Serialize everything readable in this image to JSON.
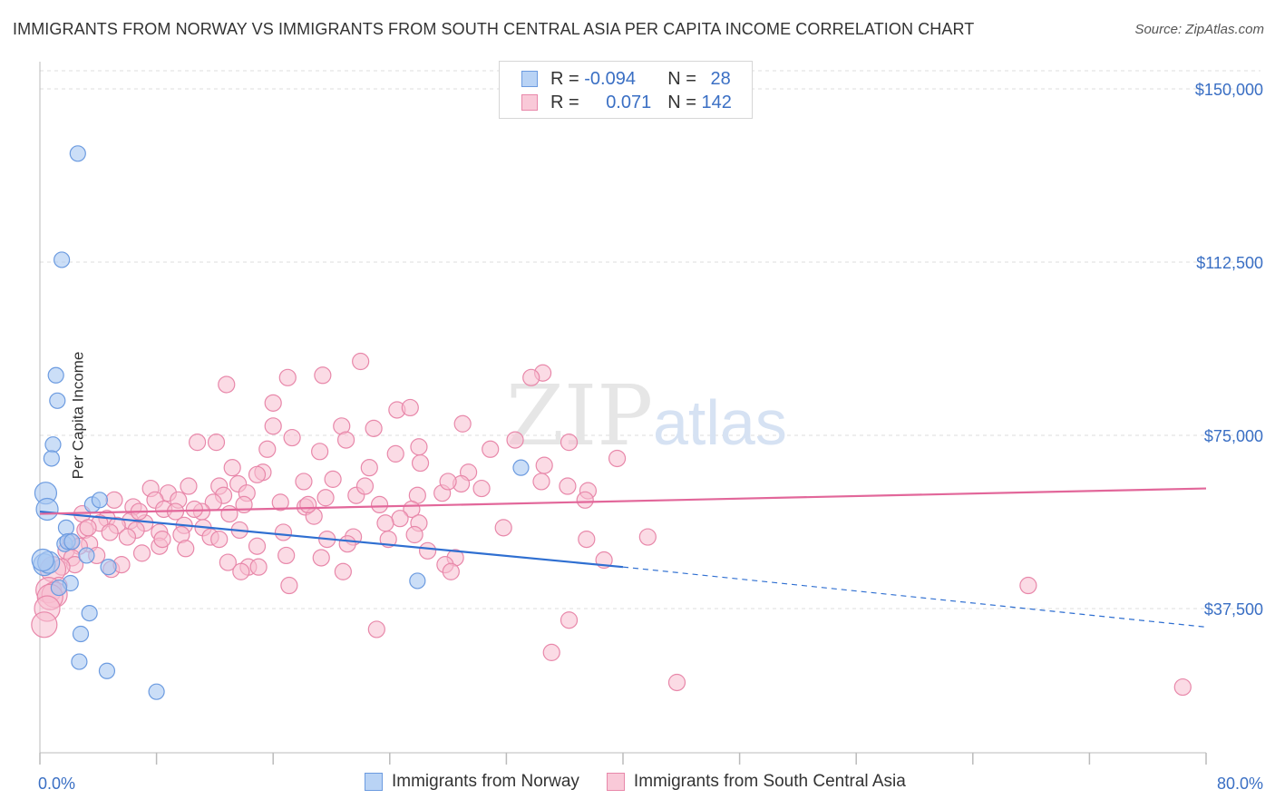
{
  "title": "IMMIGRANTS FROM NORWAY VS IMMIGRANTS FROM SOUTH CENTRAL ASIA PER CAPITA INCOME CORRELATION CHART",
  "source": "Source: ZipAtlas.com",
  "watermark": {
    "zip": "ZIP",
    "atlas": "atlas"
  },
  "legend": {
    "norway": {
      "r_label": "R = ",
      "r_value": "-0.094",
      "n_label": "N = ",
      "n_value": "28"
    },
    "asia": {
      "r_label": "R = ",
      "r_value": "0.071",
      "n_label": "N = ",
      "n_value": "142"
    }
  },
  "colors": {
    "norway_fill": "#a9c8f2",
    "norway_stroke": "#6c9be0",
    "norway_line": "#2f6fd1",
    "asia_fill": "#f7bdd0",
    "asia_stroke": "#e888aa",
    "asia_line": "#e2679a",
    "axis_label": "#3a6fc4",
    "grid": "#dcdcdc"
  },
  "chart_data": {
    "type": "scatter",
    "title": "IMMIGRANTS FROM NORWAY VS IMMIGRANTS FROM SOUTH CENTRAL ASIA PER CAPITA INCOME CORRELATION CHART",
    "xlabel": "",
    "ylabel": "Per Capita Income",
    "xlim": [
      0,
      80
    ],
    "ylim": [
      10000,
      154000
    ],
    "x_tick_labels": {
      "left": "0.0%",
      "right": "80.0%"
    },
    "y_ticks": [
      {
        "value": 37500,
        "label": "$37,500"
      },
      {
        "value": 75000,
        "label": "$75,000"
      },
      {
        "value": 112500,
        "label": "$112,500"
      },
      {
        "value": 150000,
        "label": "$150,000"
      }
    ],
    "series": [
      {
        "name": "Immigrants from Norway",
        "trend": {
          "x0": 0,
          "y0": 58500,
          "x1": 40,
          "y1": 46500,
          "dashed_to_x": 80,
          "dashed_to_y": 33500
        },
        "points": [
          [
            2.6,
            136000
          ],
          [
            1.5,
            113000
          ],
          [
            1.1,
            88000
          ],
          [
            1.2,
            82500
          ],
          [
            0.9,
            73000
          ],
          [
            0.8,
            70000
          ],
          [
            0.4,
            62500
          ],
          [
            0.5,
            59000
          ],
          [
            3.6,
            60000
          ],
          [
            4.1,
            61000
          ],
          [
            33.0,
            68000
          ],
          [
            1.8,
            55000
          ],
          [
            1.7,
            51500
          ],
          [
            1.9,
            52000
          ],
          [
            2.2,
            52000
          ],
          [
            3.2,
            49000
          ],
          [
            0.3,
            47000
          ],
          [
            4.7,
            46500
          ],
          [
            0.6,
            47500
          ],
          [
            2.1,
            43000
          ],
          [
            1.3,
            42000
          ],
          [
            3.4,
            36500
          ],
          [
            2.8,
            32000
          ],
          [
            2.7,
            26000
          ],
          [
            4.6,
            24000
          ],
          [
            8.0,
            19500
          ],
          [
            25.9,
            43500
          ],
          [
            0.2,
            48000
          ]
        ]
      },
      {
        "name": "Immigrants from South Central Asia",
        "trend": {
          "x0": 0,
          "y0": 58000,
          "x1": 80,
          "y1": 63500
        },
        "points": [
          [
            22.0,
            91000
          ],
          [
            34.5,
            88500
          ],
          [
            19.4,
            88000
          ],
          [
            33.7,
            87500
          ],
          [
            17.0,
            87500
          ],
          [
            12.8,
            86000
          ],
          [
            16.0,
            82000
          ],
          [
            24.5,
            80500
          ],
          [
            25.4,
            81000
          ],
          [
            29.0,
            77500
          ],
          [
            20.7,
            77000
          ],
          [
            22.9,
            76500
          ],
          [
            16.0,
            77000
          ],
          [
            17.3,
            74500
          ],
          [
            21.0,
            74000
          ],
          [
            10.8,
            73500
          ],
          [
            32.6,
            74000
          ],
          [
            36.3,
            73500
          ],
          [
            15.6,
            72000
          ],
          [
            26.0,
            72500
          ],
          [
            30.9,
            72000
          ],
          [
            19.2,
            71500
          ],
          [
            24.4,
            71000
          ],
          [
            39.6,
            70000
          ],
          [
            26.1,
            69000
          ],
          [
            22.6,
            68000
          ],
          [
            34.6,
            68500
          ],
          [
            13.2,
            68000
          ],
          [
            15.3,
            67000
          ],
          [
            14.9,
            66500
          ],
          [
            29.4,
            67000
          ],
          [
            18.1,
            65000
          ],
          [
            20.1,
            65500
          ],
          [
            28.9,
            64500
          ],
          [
            12.3,
            64000
          ],
          [
            13.6,
            64500
          ],
          [
            10.2,
            64000
          ],
          [
            30.3,
            63500
          ],
          [
            36.2,
            64000
          ],
          [
            37.6,
            63000
          ],
          [
            7.6,
            63500
          ],
          [
            8.8,
            62500
          ],
          [
            12.6,
            62000
          ],
          [
            14.2,
            62500
          ],
          [
            19.6,
            61500
          ],
          [
            21.7,
            62000
          ],
          [
            25.9,
            62000
          ],
          [
            27.6,
            62500
          ],
          [
            5.1,
            61000
          ],
          [
            7.9,
            61000
          ],
          [
            9.5,
            61000
          ],
          [
            11.9,
            60500
          ],
          [
            14.0,
            60000
          ],
          [
            16.5,
            60500
          ],
          [
            18.2,
            59500
          ],
          [
            23.3,
            60000
          ],
          [
            25.5,
            59000
          ],
          [
            6.4,
            59500
          ],
          [
            8.5,
            59000
          ],
          [
            9.3,
            58500
          ],
          [
            11.1,
            58500
          ],
          [
            13.0,
            58000
          ],
          [
            18.8,
            57500
          ],
          [
            24.7,
            57000
          ],
          [
            37.4,
            61000
          ],
          [
            2.9,
            58000
          ],
          [
            4.6,
            57000
          ],
          [
            6.2,
            56500
          ],
          [
            7.2,
            56000
          ],
          [
            9.9,
            55500
          ],
          [
            11.2,
            55000
          ],
          [
            13.7,
            54500
          ],
          [
            16.7,
            54000
          ],
          [
            26.0,
            56000
          ],
          [
            31.8,
            55000
          ],
          [
            4.1,
            56000
          ],
          [
            5.3,
            55500
          ],
          [
            6.6,
            54500
          ],
          [
            8.2,
            54000
          ],
          [
            3.1,
            54500
          ],
          [
            4.8,
            54000
          ],
          [
            6.0,
            53000
          ],
          [
            9.7,
            53500
          ],
          [
            11.7,
            53000
          ],
          [
            12.3,
            52500
          ],
          [
            19.7,
            52500
          ],
          [
            21.5,
            53000
          ],
          [
            23.9,
            52500
          ],
          [
            25.7,
            53500
          ],
          [
            37.5,
            52500
          ],
          [
            41.7,
            53000
          ],
          [
            2.1,
            52000
          ],
          [
            3.4,
            51500
          ],
          [
            2.7,
            51000
          ],
          [
            8.2,
            51000
          ],
          [
            10.0,
            50500
          ],
          [
            14.9,
            51000
          ],
          [
            21.1,
            51500
          ],
          [
            26.6,
            50000
          ],
          [
            7.0,
            49500
          ],
          [
            16.9,
            49000
          ],
          [
            19.3,
            48500
          ],
          [
            3.9,
            49000
          ],
          [
            1.8,
            50000
          ],
          [
            2.2,
            48500
          ],
          [
            28.5,
            48500
          ],
          [
            38.7,
            48000
          ],
          [
            12.9,
            47500
          ],
          [
            14.3,
            46500
          ],
          [
            15.0,
            46500
          ],
          [
            4.9,
            46000
          ],
          [
            13.8,
            45500
          ],
          [
            20.8,
            45500
          ],
          [
            27.8,
            47000
          ],
          [
            2.4,
            47000
          ],
          [
            1.5,
            46500
          ],
          [
            0.9,
            46000
          ],
          [
            28.2,
            45500
          ],
          [
            17.1,
            42500
          ],
          [
            1.3,
            42500
          ],
          [
            0.6,
            41500
          ],
          [
            1.0,
            40500
          ],
          [
            0.7,
            40000
          ],
          [
            67.8,
            42500
          ],
          [
            0.5,
            37500
          ],
          [
            0.3,
            34000
          ],
          [
            23.1,
            33000
          ],
          [
            36.3,
            35000
          ],
          [
            35.1,
            28000
          ],
          [
            43.7,
            21500
          ],
          [
            78.4,
            20500
          ],
          [
            18.4,
            60000
          ],
          [
            5.6,
            47000
          ],
          [
            10.6,
            59000
          ],
          [
            8.4,
            52500
          ],
          [
            3.3,
            55000
          ],
          [
            28.0,
            65000
          ],
          [
            34.4,
            65000
          ],
          [
            23.7,
            56000
          ],
          [
            6.8,
            58500
          ],
          [
            22.3,
            64000
          ],
          [
            12.1,
            73500
          ]
        ]
      }
    ]
  },
  "bottom_legend": {
    "norway": "Immigrants from Norway",
    "asia": "Immigrants from South Central Asia"
  }
}
